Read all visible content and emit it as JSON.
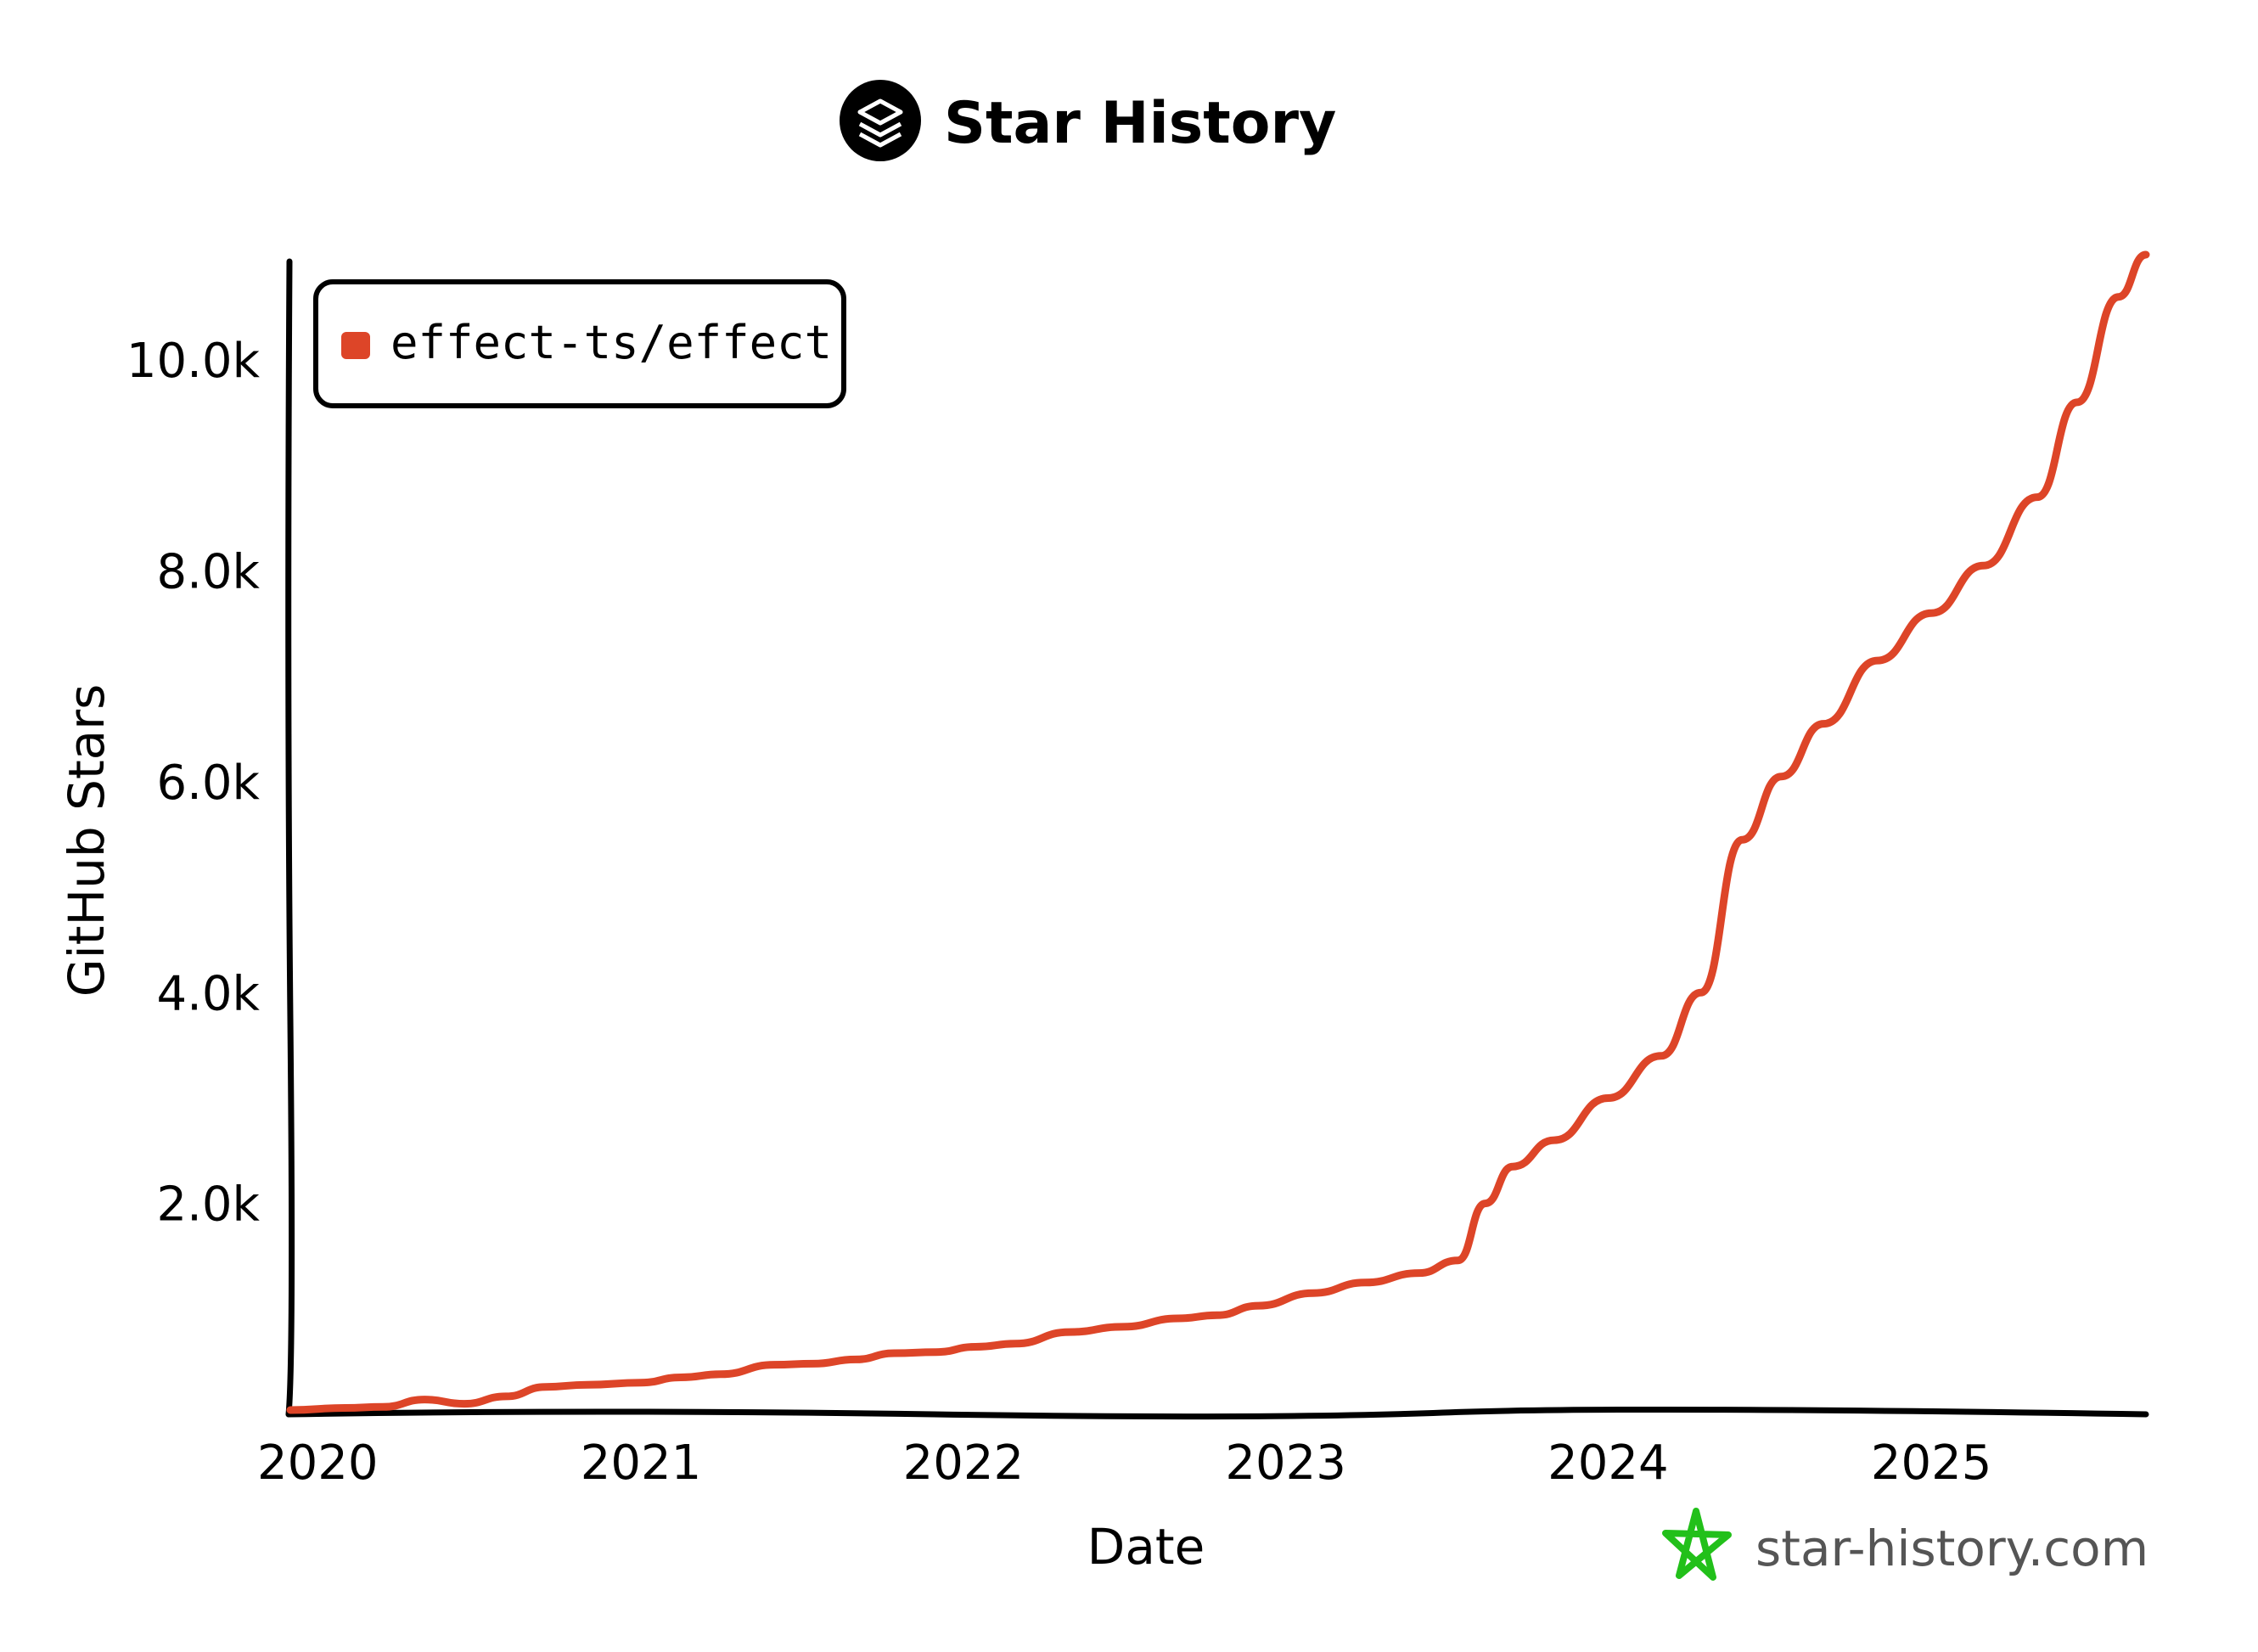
{
  "header": {
    "title": "Star History",
    "logo_icon": "star-history-layers-icon"
  },
  "watermark": {
    "text": "star-history.com",
    "icon": "green-star-icon",
    "icon_color": "#22c01a"
  },
  "chart_data": {
    "type": "line",
    "title": "Star History",
    "xlabel": "Date",
    "ylabel": "GitHub Stars",
    "x_ticks": [
      "2020",
      "2021",
      "2022",
      "2023",
      "2024",
      "2025"
    ],
    "y_ticks": [
      "2.0k",
      "4.0k",
      "6.0k",
      "8.0k",
      "10.0k"
    ],
    "y_tick_values": [
      2000,
      4000,
      6000,
      8000,
      10000
    ],
    "ylim": [
      0,
      11000
    ],
    "xlim": [
      "2019-12-01",
      "2025-09-01"
    ],
    "grid": false,
    "legend_position": "top-left",
    "series": [
      {
        "name": "effect-ts/effect",
        "color": "#dd4528",
        "points": [
          [
            "2019-12-01",
            40
          ],
          [
            "2020-02-01",
            60
          ],
          [
            "2020-03-15",
            70
          ],
          [
            "2020-05-01",
            140
          ],
          [
            "2020-06-15",
            100
          ],
          [
            "2020-08-01",
            170
          ],
          [
            "2020-09-15",
            260
          ],
          [
            "2020-11-01",
            280
          ],
          [
            "2021-01-01",
            300
          ],
          [
            "2021-02-15",
            350
          ],
          [
            "2021-04-01",
            380
          ],
          [
            "2021-06-01",
            470
          ],
          [
            "2021-07-15",
            480
          ],
          [
            "2021-09-01",
            520
          ],
          [
            "2021-10-15",
            580
          ],
          [
            "2021-12-01",
            590
          ],
          [
            "2022-01-15",
            640
          ],
          [
            "2022-03-01",
            670
          ],
          [
            "2022-05-01",
            780
          ],
          [
            "2022-07-01",
            830
          ],
          [
            "2022-09-01",
            910
          ],
          [
            "2022-10-15",
            940
          ],
          [
            "2022-12-01",
            1030
          ],
          [
            "2023-02-01",
            1150
          ],
          [
            "2023-04-01",
            1250
          ],
          [
            "2023-06-01",
            1340
          ],
          [
            "2023-07-15",
            1460
          ],
          [
            "2023-08-15",
            2000
          ],
          [
            "2023-09-15",
            2350
          ],
          [
            "2023-11-01",
            2600
          ],
          [
            "2024-01-01",
            3000
          ],
          [
            "2024-03-01",
            3400
          ],
          [
            "2024-04-15",
            4000
          ],
          [
            "2024-06-01",
            5450
          ],
          [
            "2024-07-15",
            6050
          ],
          [
            "2024-09-01",
            6550
          ],
          [
            "2024-11-01",
            7150
          ],
          [
            "2025-01-01",
            7600
          ],
          [
            "2025-03-01",
            8050
          ],
          [
            "2025-05-01",
            8700
          ],
          [
            "2025-06-15",
            9600
          ],
          [
            "2025-08-01",
            10600
          ],
          [
            "2025-09-01",
            11000
          ]
        ]
      }
    ]
  }
}
